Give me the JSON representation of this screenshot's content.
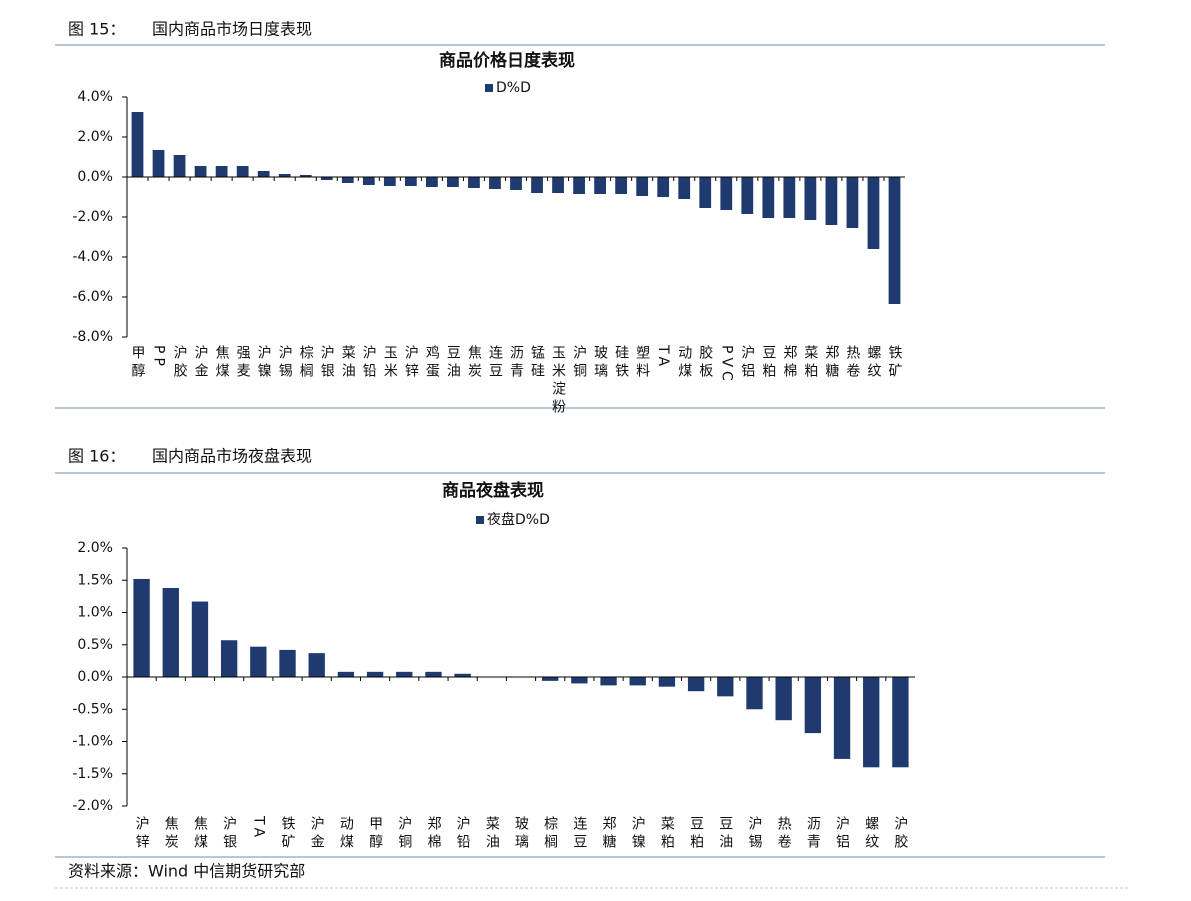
{
  "figures": [
    {
      "number": "图 15：",
      "title": "国内商品市场日度表现"
    },
    {
      "number": "图 16：",
      "title": "国内商品市场夜盘表现"
    }
  ],
  "source": "资料来源：Wind  中信期货研究部",
  "chart_data": [
    {
      "type": "bar",
      "title": "商品价格日度表现",
      "categories": [
        "甲醇",
        "PP",
        "沪胶",
        "沪金",
        "焦煤",
        "强麦",
        "沪镍",
        "沪锡",
        "棕榈",
        "沪银",
        "菜油",
        "沪铅",
        "玉米",
        "沪锌",
        "鸡蛋",
        "豆油",
        "焦炭",
        "连豆",
        "沥青",
        "锰硅",
        "玉米淀粉",
        "沪铜",
        "玻璃",
        "硅铁",
        "塑料",
        "TA",
        "动煤",
        "胶板",
        "PVC",
        "沪铝",
        "豆粕",
        "郑棉",
        "菜粕",
        "郑糖",
        "热卷",
        "螺纹",
        "铁矿"
      ],
      "series": [
        {
          "name": "D%D",
          "color": "#1f3a6e",
          "values": [
            3.25,
            1.35,
            1.1,
            0.55,
            0.55,
            0.55,
            0.3,
            0.15,
            0.1,
            -0.15,
            -0.3,
            -0.4,
            -0.45,
            -0.45,
            -0.5,
            -0.5,
            -0.55,
            -0.6,
            -0.65,
            -0.8,
            -0.8,
            -0.85,
            -0.85,
            -0.85,
            -0.95,
            -1.0,
            -1.1,
            -1.55,
            -1.65,
            -1.85,
            -2.05,
            -2.05,
            -2.15,
            -2.4,
            -2.55,
            -3.6,
            -6.35
          ]
        }
      ],
      "ylim": [
        -8,
        4
      ],
      "yticks": [
        {
          "value": -8,
          "label": "-8.0%"
        },
        {
          "value": -6,
          "label": "-6.0%"
        },
        {
          "value": -4,
          "label": "-4.0%"
        },
        {
          "value": -2,
          "label": "-2.0%"
        },
        {
          "value": 0,
          "label": "0.0%"
        },
        {
          "value": 2,
          "label": "2.0%"
        },
        {
          "value": 4,
          "label": "4.0%"
        }
      ],
      "grid": false,
      "legend": "top"
    },
    {
      "type": "bar",
      "title": "商品夜盘表现",
      "categories": [
        "沪锌",
        "焦炭",
        "焦煤",
        "沪银",
        "TA",
        "铁矿",
        "沪金",
        "动煤",
        "甲醇",
        "沪铜",
        "郑棉",
        "沪铅",
        "菜油",
        "玻璃",
        "棕榈",
        "连豆",
        "郑糖",
        "沪镍",
        "菜粕",
        "豆粕",
        "豆油",
        "沪锡",
        "热卷",
        "沥青",
        "沪铝",
        "螺纹",
        "沪胶"
      ],
      "series": [
        {
          "name": "夜盘D%D",
          "color": "#1f3a6e",
          "values": [
            1.52,
            1.38,
            1.17,
            0.57,
            0.47,
            0.42,
            0.37,
            0.08,
            0.08,
            0.08,
            0.08,
            0.05,
            0,
            0,
            -0.06,
            -0.1,
            -0.13,
            -0.13,
            -0.15,
            -0.22,
            -0.3,
            -0.5,
            -0.67,
            -0.87,
            -1.27,
            -1.4,
            -1.4
          ]
        }
      ],
      "ylim": [
        -2,
        2
      ],
      "yticks": [
        {
          "value": -2,
          "label": "-2.0%"
        },
        {
          "value": -1.5,
          "label": "-1.5%"
        },
        {
          "value": -1,
          "label": "-1.0%"
        },
        {
          "value": -0.5,
          "label": "-0.5%"
        },
        {
          "value": 0,
          "label": "0.0%"
        },
        {
          "value": 0.5,
          "label": "0.5%"
        },
        {
          "value": 1,
          "label": "1.0%"
        },
        {
          "value": 1.5,
          "label": "1.5%"
        },
        {
          "value": 2,
          "label": "2.0%"
        }
      ],
      "grid": false,
      "legend": "top"
    }
  ]
}
